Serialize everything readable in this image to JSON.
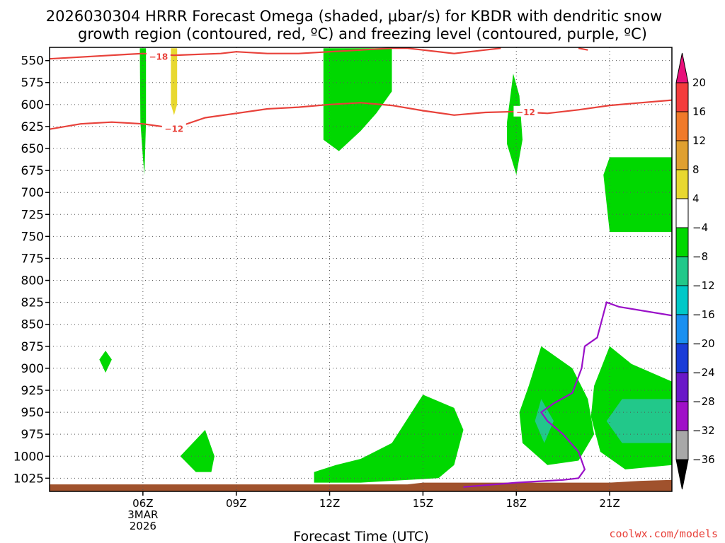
{
  "chart_data": {
    "type": "heatmap",
    "title_line1": "2026030304 HRRR Forecast Omega (shaded, μbar/s) for KBDR with dendritic snow",
    "title_line2": "growth region (contoured, red, ºC) and freezing level (contoured, purple, ºC)",
    "xlabel": "Forecast Time (UTC)",
    "ylabel": "",
    "credit": "coolwx.com/models",
    "x_range_hours": [
      3.0,
      23.0
    ],
    "y_range_hpa": [
      1040,
      535
    ],
    "y_ticks": [
      550,
      575,
      600,
      625,
      650,
      675,
      700,
      725,
      750,
      775,
      800,
      825,
      850,
      875,
      900,
      925,
      950,
      975,
      1000,
      1025
    ],
    "x_ticks": [
      {
        "hour": 6,
        "label": "06Z",
        "sub1": "3MAR",
        "sub2": "2026"
      },
      {
        "hour": 9,
        "label": "09Z",
        "sub1": "",
        "sub2": ""
      },
      {
        "hour": 12,
        "label": "12Z",
        "sub1": "",
        "sub2": ""
      },
      {
        "hour": 15,
        "label": "15Z",
        "sub1": "",
        "sub2": ""
      },
      {
        "hour": 18,
        "label": "18Z",
        "sub1": "",
        "sub2": ""
      },
      {
        "hour": 21,
        "label": "21Z",
        "sub1": "",
        "sub2": ""
      }
    ],
    "colorbar": {
      "labels": [
        "20",
        "16",
        "12",
        "8",
        "4",
        "−4",
        "−8",
        "−12",
        "−16",
        "−20",
        "−24",
        "−28",
        "−32",
        "−36"
      ],
      "colors": [
        "#f43c3c",
        "#f07a2a",
        "#e0a030",
        "#e8d830",
        "#ffffff",
        "#00d800",
        "#22c88a",
        "#00c8c8",
        "#1a90f0",
        "#1a3cd8",
        "#6a18c8",
        "#a010c8",
        "#a8a8a8"
      ],
      "top_color": "#e8107a",
      "bottom_color": "#000000"
    },
    "shaded_regions": [
      {
        "value": "-4 to -8",
        "color": "#00d800",
        "points": [
          [
            5.9,
            536
          ],
          [
            6.1,
            536
          ],
          [
            6.1,
            620
          ],
          [
            6.05,
            680
          ],
          [
            6.0,
            660
          ],
          [
            5.92,
            620
          ]
        ]
      },
      {
        "value": "4 to 8",
        "color": "#e8d830",
        "points": [
          [
            6.9,
            536
          ],
          [
            7.1,
            536
          ],
          [
            7.1,
            600
          ],
          [
            7.0,
            612
          ],
          [
            6.9,
            600
          ]
        ]
      },
      {
        "value": "-4 to -8",
        "color": "#00d800",
        "points": [
          [
            11.8,
            536
          ],
          [
            14.0,
            536
          ],
          [
            14.0,
            585
          ],
          [
            13.5,
            610
          ],
          [
            13.0,
            630
          ],
          [
            12.3,
            653
          ],
          [
            11.8,
            640
          ]
        ]
      },
      {
        "value": "-4 to -8",
        "color": "#00d800",
        "points": [
          [
            17.9,
            565
          ],
          [
            18.1,
            590
          ],
          [
            18.2,
            640
          ],
          [
            18.0,
            680
          ],
          [
            17.7,
            645
          ],
          [
            17.7,
            620
          ]
        ]
      },
      {
        "value": "-4 to -8",
        "color": "#00d800",
        "points": [
          [
            21.0,
            660
          ],
          [
            23.0,
            660
          ],
          [
            23.0,
            745
          ],
          [
            21.0,
            745
          ],
          [
            20.8,
            680
          ]
        ]
      },
      {
        "value": "-4 to -8",
        "color": "#00d800",
        "points": [
          [
            4.8,
            880
          ],
          [
            5.0,
            890
          ],
          [
            4.8,
            905
          ],
          [
            4.6,
            890
          ]
        ]
      },
      {
        "value": "-4 to -8",
        "color": "#00d800",
        "points": [
          [
            8.0,
            970
          ],
          [
            8.3,
            1000
          ],
          [
            8.2,
            1018
          ],
          [
            7.7,
            1018
          ],
          [
            7.2,
            1000
          ],
          [
            7.6,
            985
          ]
        ]
      },
      {
        "value": "-4 to -8",
        "color": "#00d800",
        "points": [
          [
            11.5,
            1018
          ],
          [
            12.2,
            1010
          ],
          [
            13.0,
            1003
          ],
          [
            14.0,
            985
          ],
          [
            15.0,
            930
          ],
          [
            16.0,
            945
          ],
          [
            16.3,
            970
          ],
          [
            16.0,
            1010
          ],
          [
            15.5,
            1025
          ],
          [
            13.0,
            1030
          ],
          [
            11.5,
            1030
          ]
        ]
      },
      {
        "value": "-4 to -8",
        "color": "#00d800",
        "points": [
          [
            18.8,
            875
          ],
          [
            19.8,
            900
          ],
          [
            20.3,
            935
          ],
          [
            20.5,
            975
          ],
          [
            20.0,
            1005
          ],
          [
            19.0,
            1010
          ],
          [
            18.2,
            985
          ],
          [
            18.1,
            950
          ],
          [
            18.4,
            920
          ]
        ]
      },
      {
        "value": "-8 to -12",
        "color": "#22c88a",
        "points": [
          [
            18.8,
            935
          ],
          [
            19.2,
            960
          ],
          [
            18.9,
            985
          ],
          [
            18.6,
            960
          ]
        ]
      },
      {
        "value": "-4 to -8",
        "color": "#00d800",
        "points": [
          [
            21.0,
            875
          ],
          [
            21.7,
            895
          ],
          [
            23.0,
            915
          ],
          [
            23.0,
            1010
          ],
          [
            21.5,
            1015
          ],
          [
            20.7,
            995
          ],
          [
            20.4,
            955
          ],
          [
            20.5,
            920
          ]
        ]
      },
      {
        "value": "-8 to -12",
        "color": "#22c88a",
        "points": [
          [
            21.4,
            935
          ],
          [
            23.0,
            935
          ],
          [
            23.0,
            985
          ],
          [
            21.4,
            985
          ],
          [
            20.9,
            960
          ]
        ]
      }
    ],
    "contours_red": [
      {
        "label": "−18",
        "label_at": [
          6.5,
          545
        ],
        "points": [
          [
            3.0,
            548
          ],
          [
            4.0,
            546
          ],
          [
            5.5,
            543
          ],
          [
            6.0,
            542
          ],
          [
            7.0,
            544
          ],
          [
            8.5,
            542
          ],
          [
            9.0,
            540
          ],
          [
            10.0,
            542
          ],
          [
            11.0,
            542
          ],
          [
            12.0,
            540
          ],
          [
            13.0,
            538
          ],
          [
            14.0,
            536
          ],
          [
            14.5,
            536
          ],
          [
            15.0,
            538
          ],
          [
            16.0,
            542
          ],
          [
            17.0,
            538
          ],
          [
            17.5,
            536
          ]
        ]
      },
      {
        "label": "",
        "label_at": null,
        "points": [
          [
            20.0,
            536
          ],
          [
            20.3,
            538
          ]
        ]
      },
      {
        "label": "−12",
        "label_at": [
          7.0,
          627
        ],
        "points": [
          [
            3.0,
            628
          ],
          [
            4.0,
            622
          ],
          [
            5.0,
            620
          ],
          [
            6.0,
            622
          ],
          [
            7.0,
            627
          ],
          [
            8.0,
            615
          ],
          [
            9.0,
            610
          ],
          [
            10.0,
            605
          ],
          [
            11.0,
            603
          ],
          [
            12.0,
            600
          ],
          [
            13.0,
            598
          ],
          [
            14.0,
            601
          ],
          [
            15.0,
            607
          ],
          [
            16.0,
            612
          ],
          [
            17.0,
            609
          ],
          [
            18.0,
            608
          ],
          [
            19.0,
            610
          ],
          [
            20.0,
            606
          ],
          [
            21.0,
            601
          ],
          [
            22.0,
            598
          ],
          [
            23.0,
            595
          ]
        ]
      }
    ],
    "contours_purple": [
      {
        "label": "",
        "points": [
          [
            16.3,
            1035
          ],
          [
            18.0,
            1030
          ],
          [
            19.5,
            1027
          ],
          [
            20.0,
            1025
          ],
          [
            20.2,
            1015
          ],
          [
            20.0,
            995
          ],
          [
            19.5,
            975
          ],
          [
            19.0,
            960
          ],
          [
            18.8,
            950
          ],
          [
            19.2,
            940
          ],
          [
            19.8,
            928
          ],
          [
            20.1,
            900
          ],
          [
            20.2,
            875
          ],
          [
            20.6,
            865
          ],
          [
            20.9,
            825
          ],
          [
            21.3,
            830
          ],
          [
            23.0,
            840
          ]
        ]
      }
    ],
    "terrain": {
      "color": "#a0522d",
      "points": [
        [
          3.0,
          1040
        ],
        [
          3.0,
          1032
        ],
        [
          14.5,
          1032
        ],
        [
          15.0,
          1030
        ],
        [
          18.0,
          1030
        ],
        [
          21.0,
          1030
        ],
        [
          22.0,
          1028
        ],
        [
          23.0,
          1027
        ],
        [
          23.0,
          1040
        ]
      ]
    }
  }
}
